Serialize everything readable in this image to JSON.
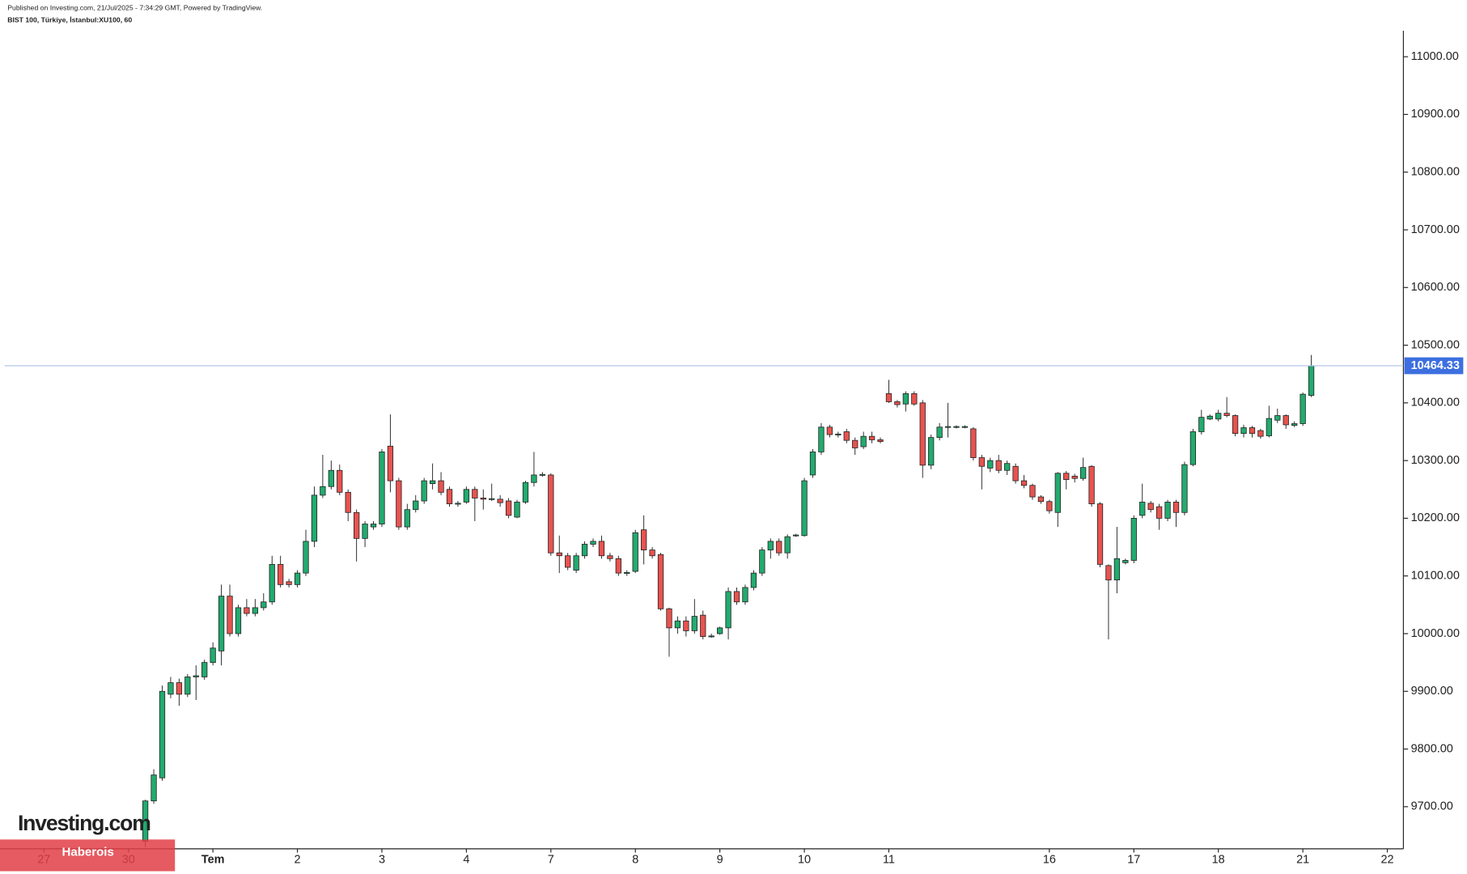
{
  "header": {
    "published": "Published on Investing.com, 21/Jul/2025 - 7:34:29 GMT, Powered by TradingView.",
    "symbol": "BIST 100, Türkiye, İstanbul:XU100, 60"
  },
  "watermark": "Investing.com",
  "badge": "Haberois",
  "chart_data": {
    "type": "candlestick",
    "up_color": "#22ab6f",
    "down_color": "#e8534f",
    "xlim": [
      -17.2,
      148.9
    ],
    "ylim": [
      9627,
      11045
    ],
    "xticks": [
      {
        "value": -12,
        "label": "27"
      },
      {
        "value": -2,
        "label": "30"
      },
      {
        "value": 8,
        "label": "Tem"
      },
      {
        "value": 18,
        "label": "2"
      },
      {
        "value": 28,
        "label": "3"
      },
      {
        "value": 38,
        "label": "4"
      },
      {
        "value": 48,
        "label": "7"
      },
      {
        "value": 58,
        "label": "8"
      },
      {
        "value": 68,
        "label": "9"
      },
      {
        "value": 78,
        "label": "10"
      },
      {
        "value": 88,
        "label": "11"
      },
      {
        "value": 107,
        "label": "16"
      },
      {
        "value": 117,
        "label": "17"
      },
      {
        "value": 127,
        "label": "18"
      },
      {
        "value": 137,
        "label": "21"
      },
      {
        "value": 147,
        "label": "22"
      }
    ],
    "yticks": [
      {
        "value": 9700,
        "label": "9700.00"
      },
      {
        "value": 9800,
        "label": "9800.00"
      },
      {
        "value": 9900,
        "label": "9900.00"
      },
      {
        "value": 10000,
        "label": "10000.00"
      },
      {
        "value": 10100,
        "label": "10100.00"
      },
      {
        "value": 10200,
        "label": "10200.00"
      },
      {
        "value": 10300,
        "label": "10300.00"
      },
      {
        "value": 10400,
        "label": "10400.00"
      },
      {
        "value": 10500,
        "label": "10500.00"
      },
      {
        "value": 10600,
        "label": "10600.00"
      },
      {
        "value": 10700,
        "label": "10700.00"
      },
      {
        "value": 10800,
        "label": "10800.00"
      },
      {
        "value": 10900,
        "label": "10900.00"
      },
      {
        "value": 11000,
        "label": "11000.00"
      }
    ],
    "last_price": {
      "value": 10464.33,
      "label": "10464.33",
      "color": "#3d6fe0"
    },
    "open": [
      9640,
      9710,
      9750,
      9895,
      9915,
      9895,
      9925,
      9925,
      9950,
      9970,
      10065,
      10000,
      10045,
      10035,
      10045,
      10055,
      10120,
      10090,
      10085,
      10105,
      10160,
      10240,
      10255,
      10283,
      10245,
      10210,
      10165,
      10185,
      10190,
      10325,
      10265,
      10185,
      10215,
      10230,
      10260,
      10265,
      10250,
      10225,
      10228,
      10250,
      10235,
      10233,
      10233,
      10230,
      10202,
      10228,
      10262,
      10275,
      10275,
      10140,
      10135,
      10110,
      10135,
      10155,
      10160,
      10135,
      10130,
      10105,
      10108,
      10180,
      10145,
      10137,
      10043,
      10010,
      10022,
      10005,
      10032,
      9995,
      10000,
      10010,
      10073,
      10055,
      10080,
      10105,
      10145,
      10160,
      10140,
      10170,
      10170,
      10275,
      10315,
      10358,
      10345,
      10350,
      10335,
      10324,
      10342,
      10336,
      10416,
      10402,
      10398,
      10416,
      10400,
      10292,
      10340,
      10358,
      10358,
      10358,
      10355,
      10305,
      10287,
      10300,
      10283,
      10290,
      10265,
      10257,
      10237,
      10229,
      10210,
      10278,
      10273,
      10269,
      10290,
      10225,
      10118,
      10093,
      10123,
      10127,
      10205,
      10226,
      10220,
      10200,
      10228,
      10210,
      10293,
      10350,
      10372,
      10372,
      10382,
      10378,
      10347,
      10357,
      10352,
      10343,
      10370,
      10378,
      10361,
      10364,
      10413
    ],
    "high": [
      9712,
      9765,
      9910,
      9925,
      9922,
      9930,
      9945,
      9955,
      9985,
      10085,
      10085,
      10050,
      10060,
      10060,
      10070,
      10135,
      10135,
      10095,
      10110,
      10180,
      10255,
      10310,
      10300,
      10293,
      10250,
      10215,
      10195,
      10195,
      10320,
      10380,
      10270,
      10225,
      10240,
      10270,
      10295,
      10280,
      10255,
      10230,
      10255,
      10255,
      10250,
      10260,
      10240,
      10235,
      10232,
      10265,
      10315,
      10280,
      10278,
      10170,
      10140,
      10140,
      10160,
      10165,
      10170,
      10140,
      10135,
      10110,
      10180,
      10205,
      10150,
      10140,
      10045,
      10030,
      10030,
      10060,
      10040,
      10000,
      10012,
      10080,
      10080,
      10085,
      10110,
      10150,
      10165,
      10165,
      10172,
      10173,
      10270,
      10320,
      10365,
      10362,
      10350,
      10355,
      10340,
      10350,
      10350,
      10340,
      10440,
      10405,
      10420,
      10420,
      10405,
      10345,
      10365,
      10400,
      10361,
      10361,
      10358,
      10310,
      10305,
      10310,
      10300,
      10295,
      10275,
      10260,
      10240,
      10232,
      10280,
      10282,
      10277,
      10305,
      10292,
      10228,
      10120,
      10185,
      10130,
      10205,
      10260,
      10230,
      10225,
      10232,
      10232,
      10298,
      10355,
      10388,
      10380,
      10388,
      10410,
      10380,
      10362,
      10360,
      10355,
      10395,
      10390,
      10380,
      10368,
      10418,
      10483
    ],
    "low": [
      9630,
      9705,
      9745,
      9888,
      9875,
      9890,
      9885,
      9920,
      9945,
      9945,
      9995,
      9995,
      10030,
      10030,
      10040,
      10050,
      10080,
      10080,
      10080,
      10100,
      10150,
      10235,
      10250,
      10240,
      10195,
      10125,
      10150,
      10180,
      10185,
      10245,
      10180,
      10180,
      10210,
      10225,
      10250,
      10240,
      10220,
      10220,
      10225,
      10195,
      10215,
      10230,
      10220,
      10200,
      10200,
      10225,
      10255,
      10272,
      10135,
      10105,
      10110,
      10105,
      10130,
      10150,
      10130,
      10125,
      10100,
      10100,
      10105,
      10120,
      10130,
      10040,
      9960,
      10000,
      9995,
      10000,
      9990,
      9993,
      9998,
      9990,
      10050,
      10050,
      10075,
      10100,
      10130,
      10135,
      10130,
      10168,
      10168,
      10270,
      10310,
      10340,
      10340,
      10330,
      10310,
      10320,
      10330,
      10330,
      10400,
      10392,
      10385,
      10395,
      10270,
      10285,
      10335,
      10340,
      10356,
      10356,
      10300,
      10250,
      10280,
      10278,
      10275,
      10260,
      10252,
      10232,
      10225,
      10208,
      10185,
      10250,
      10262,
      10265,
      10220,
      10115,
      9990,
      10070,
      10120,
      10122,
      10200,
      10210,
      10180,
      10195,
      10185,
      10205,
      10290,
      10345,
      10370,
      10368,
      10375,
      10342,
      10340,
      10340,
      10338,
      10340,
      10365,
      10355,
      10358,
      10360,
      10410
    ],
    "close": [
      9710,
      9755,
      9900,
      9915,
      9895,
      9925,
      9927,
      9950,
      9975,
      10065,
      10000,
      10045,
      10035,
      10045,
      10055,
      10120,
      10085,
      10085,
      10105,
      10160,
      10240,
      10255,
      10283,
      10245,
      10210,
      10165,
      10190,
      10190,
      10315,
      10265,
      10185,
      10215,
      10230,
      10265,
      10265,
      10245,
      10225,
      10226,
      10250,
      10235,
      10233,
      10234,
      10227,
      10205,
      10228,
      10262,
      10275,
      10276,
      10140,
      10135,
      10115,
      10135,
      10155,
      10160,
      10135,
      10130,
      10105,
      10106,
      10175,
      10145,
      10135,
      10043,
      10010,
      10022,
      10005,
      10030,
      9995,
      9996,
      10010,
      10073,
      10055,
      10080,
      10105,
      10145,
      10160,
      10140,
      10168,
      10171,
      10265,
      10315,
      10358,
      10345,
      10346,
      10335,
      10322,
      10342,
      10336,
      10333,
      10402,
      10397,
      10416,
      10398,
      10292,
      10340,
      10358,
      10359,
      10359,
      10359,
      10305,
      10290,
      10300,
      10283,
      10295,
      10265,
      10257,
      10237,
      10229,
      10213,
      10278,
      10267,
      10269,
      10288,
      10225,
      10120,
      10093,
      10130,
      10127,
      10200,
      10228,
      10215,
      10200,
      10228,
      10210,
      10293,
      10350,
      10375,
      10377,
      10382,
      10378,
      10347,
      10357,
      10347,
      10342,
      10373,
      10378,
      10362,
      10364,
      10415,
      10464.33
    ]
  }
}
